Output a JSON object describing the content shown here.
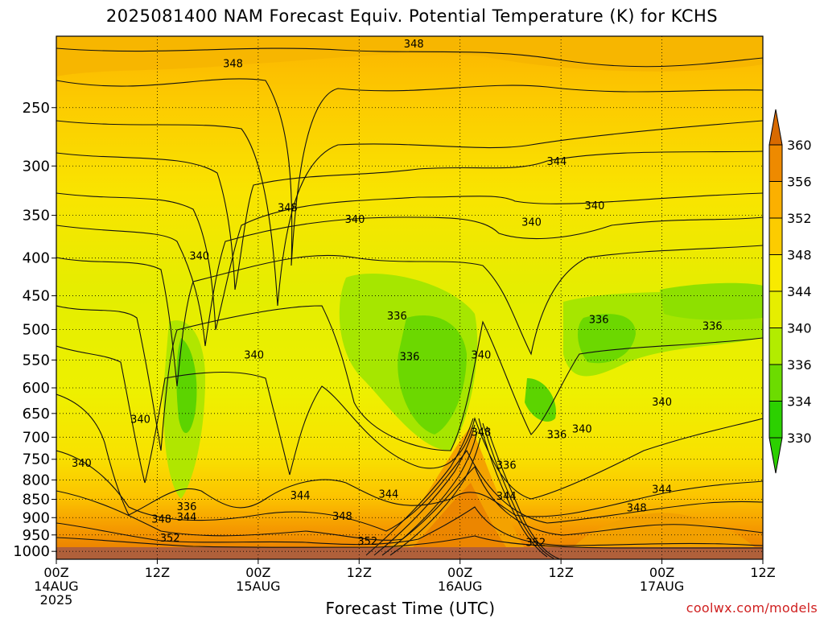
{
  "title": "2025081400 NAM Forecast Equiv. Potential Temperature (K) for KCHS",
  "credit": "coolwx.com/models",
  "chart_data": {
    "type": "contour",
    "variable": "Equiv. Potential Temperature",
    "units": "K",
    "run": "2025081400",
    "model": "NAM",
    "station": "KCHS",
    "xlabel": "Forecast Time (UTC)",
    "ylabel": "",
    "y_axis": {
      "scale": "log-pressure",
      "reversed": true,
      "range": [
        1025,
        200
      ],
      "ticks": [
        250,
        300,
        350,
        400,
        450,
        500,
        550,
        600,
        650,
        700,
        750,
        800,
        850,
        900,
        950,
        1000
      ]
    },
    "x_axis": {
      "range_hours": [
        0,
        84
      ],
      "ticks": [
        {
          "hour": 0,
          "label": [
            "00Z",
            "14AUG",
            "2025"
          ]
        },
        {
          "hour": 12,
          "label": [
            "12Z"
          ]
        },
        {
          "hour": 24,
          "label": [
            "00Z",
            "15AUG"
          ]
        },
        {
          "hour": 36,
          "label": [
            "12Z"
          ]
        },
        {
          "hour": 48,
          "label": [
            "00Z",
            "16AUG"
          ]
        },
        {
          "hour": 60,
          "label": [
            "12Z"
          ]
        },
        {
          "hour": 72,
          "label": [
            "00Z",
            "17AUG"
          ]
        },
        {
          "hour": 84,
          "label": [
            "12Z"
          ]
        }
      ]
    },
    "grid": "dotted",
    "colorbar": {
      "ticks": [
        360,
        356,
        352,
        348,
        344,
        340,
        336,
        334,
        330
      ],
      "colors": [
        "#d86a00",
        "#ee8a00",
        "#fbb000",
        "#fccc00",
        "#f8ea00",
        "#e6ee00",
        "#b2ec00",
        "#6cdc00",
        "#2cd000"
      ],
      "placement": "right"
    },
    "contour_labels": [
      {
        "text": "348",
        "hour": 21,
        "p": 218
      },
      {
        "text": "348",
        "hour": 42.5,
        "p": 205
      },
      {
        "text": "344",
        "hour": 59.5,
        "p": 296
      },
      {
        "text": "340",
        "hour": 64,
        "p": 340
      },
      {
        "text": "340",
        "hour": 56.5,
        "p": 358
      },
      {
        "text": "348",
        "hour": 27.5,
        "p": 342
      },
      {
        "text": "340",
        "hour": 35.5,
        "p": 355
      },
      {
        "text": "340",
        "hour": 17,
        "p": 398
      },
      {
        "text": "336",
        "hour": 40.5,
        "p": 480
      },
      {
        "text": "336",
        "hour": 64.5,
        "p": 485
      },
      {
        "text": "336",
        "hour": 78,
        "p": 495
      },
      {
        "text": "336",
        "hour": 42,
        "p": 545
      },
      {
        "text": "340",
        "hour": 50.5,
        "p": 542
      },
      {
        "text": "340",
        "hour": 23.5,
        "p": 542
      },
      {
        "text": "340",
        "hour": 72,
        "p": 628
      },
      {
        "text": "340",
        "hour": 10,
        "p": 663
      },
      {
        "text": "340",
        "hour": 62.5,
        "p": 683
      },
      {
        "text": "336",
        "hour": 59.5,
        "p": 695
      },
      {
        "text": "348",
        "hour": 50.5,
        "p": 690
      },
      {
        "text": "340",
        "hour": 3,
        "p": 760
      },
      {
        "text": "336",
        "hour": 53.5,
        "p": 765
      },
      {
        "text": "344",
        "hour": 39.5,
        "p": 837
      },
      {
        "text": "344",
        "hour": 29,
        "p": 840
      },
      {
        "text": "344",
        "hour": 53.5,
        "p": 842
      },
      {
        "text": "344",
        "hour": 72,
        "p": 825
      },
      {
        "text": "336",
        "hour": 15.5,
        "p": 870
      },
      {
        "text": "344",
        "hour": 15.5,
        "p": 899
      },
      {
        "text": "348",
        "hour": 12.5,
        "p": 905
      },
      {
        "text": "348",
        "hour": 34,
        "p": 897
      },
      {
        "text": "348",
        "hour": 69,
        "p": 874
      },
      {
        "text": "352",
        "hour": 13.5,
        "p": 960
      },
      {
        "text": "352",
        "hour": 37,
        "p": 970
      },
      {
        "text": "352",
        "hour": 57,
        "p": 973
      }
    ]
  }
}
